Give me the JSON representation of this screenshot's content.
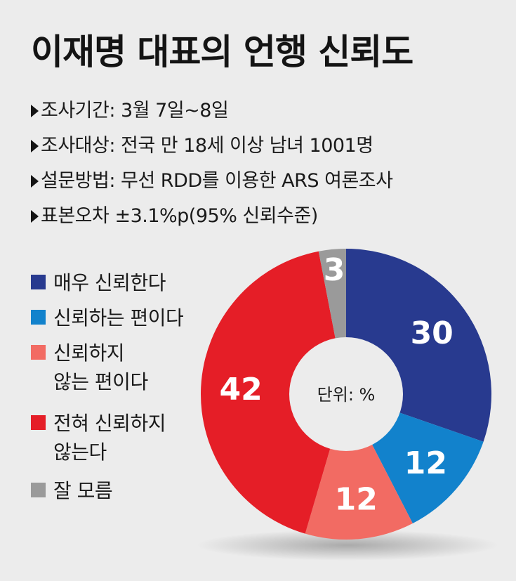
{
  "title": "이재명 대표의 언행 신뢰도",
  "info": [
    {
      "text": "조사기간: 3월 7일~8일"
    },
    {
      "text": "조사대상: 전국 만 18세 이상 남녀 1001명"
    },
    {
      "text": "설문방법: 무선 RDD를 이용한 ARS 여론조사"
    },
    {
      "text": "표본오차  ±3.1%p(95% 신뢰수준)"
    }
  ],
  "legend": [
    {
      "line1": "매우 신뢰한다",
      "line2": ""
    },
    {
      "line1": "신뢰하는 편이다",
      "line2": ""
    },
    {
      "line1": "신뢰하지",
      "line2": "않는 편이다"
    },
    {
      "line1": "전혀 신뢰하지",
      "line2": "않는다"
    },
    {
      "line1": "잘 모름",
      "line2": ""
    }
  ],
  "chart_data": {
    "type": "pie",
    "donut": true,
    "center_label": "단위: %",
    "start": "top, clockwise",
    "categories": [
      "매우 신뢰한다",
      "신뢰하는 편이다",
      "신뢰하지 않는 편이다",
      "전혀 신뢰하지 않는다",
      "잘 모름"
    ],
    "values": [
      30,
      12,
      12,
      42,
      3
    ],
    "labels": [
      "30",
      "12",
      "12",
      "42",
      "3"
    ],
    "colors": [
      "#283a8f",
      "#1282cc",
      "#f26b63",
      "#e51e27",
      "#9a9a9a"
    ]
  }
}
